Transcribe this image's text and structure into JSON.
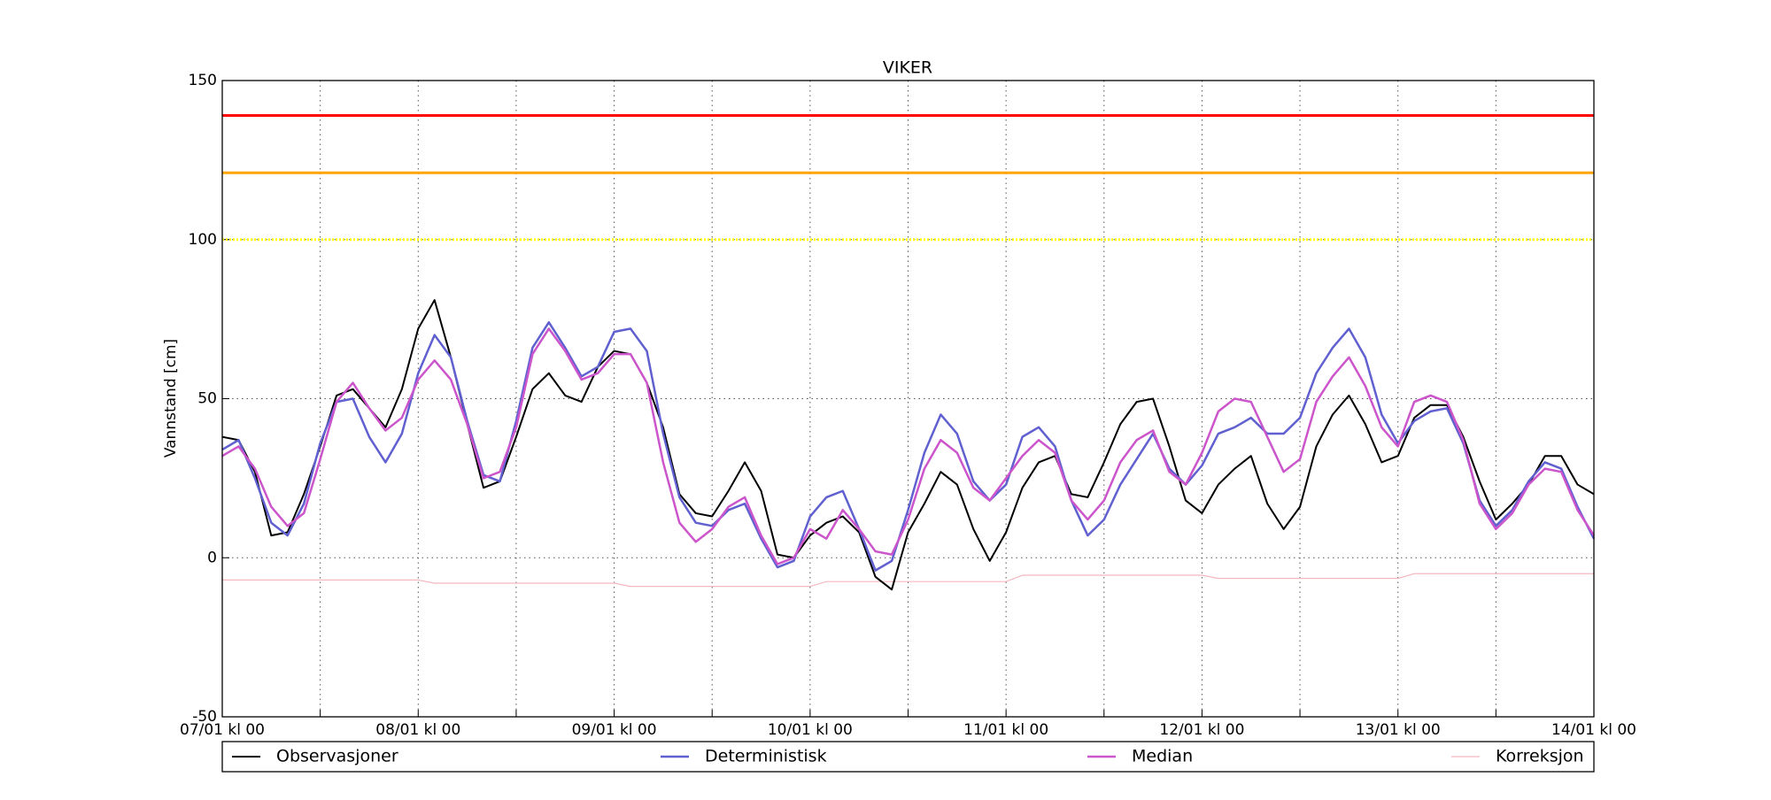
{
  "chart_data": {
    "type": "line",
    "title": "VIKER",
    "y_label": "Vannstand [cm]",
    "xlim": [
      0,
      168
    ],
    "ylim": [
      -50,
      150
    ],
    "xticks": [
      {
        "value": 0,
        "label": "07/01 kl 00"
      },
      {
        "value": 24,
        "label": "08/01 kl 00"
      },
      {
        "value": 48,
        "label": "09/01 kl 00"
      },
      {
        "value": 72,
        "label": "10/01 kl 00"
      },
      {
        "value": 96,
        "label": "11/01 kl 00"
      },
      {
        "value": 120,
        "label": "12/01 kl 00"
      },
      {
        "value": 144,
        "label": "13/01 kl 00"
      },
      {
        "value": 168,
        "label": "14/01 kl 00"
      }
    ],
    "xgrid_minor": [
      12,
      36,
      60,
      84,
      108,
      132,
      156
    ],
    "yticks": [
      -50,
      0,
      50,
      100,
      150
    ],
    "grid": true,
    "thresholds": [
      {
        "value": 139,
        "color": "#ff0000",
        "style": "solid"
      },
      {
        "value": 121,
        "color": "#ffa500",
        "style": "solid"
      },
      {
        "value": 100,
        "color": "#ffff00",
        "style": "dotted"
      }
    ],
    "legend": "bottom",
    "x": [
      0,
      2,
      4,
      6,
      8,
      10,
      12,
      14,
      16,
      18,
      20,
      22,
      24,
      26,
      28,
      30,
      32,
      34,
      36,
      38,
      40,
      42,
      44,
      46,
      48,
      50,
      52,
      54,
      56,
      58,
      60,
      62,
      64,
      66,
      68,
      70,
      72,
      74,
      76,
      78,
      80,
      82,
      84,
      86,
      88,
      90,
      92,
      94,
      96,
      98,
      100,
      102,
      104,
      106,
      108,
      110,
      112,
      114,
      116,
      118,
      120,
      122,
      124,
      126,
      128,
      130,
      132,
      134,
      136,
      138,
      140,
      142,
      144,
      146,
      148,
      150,
      152,
      154,
      156,
      158,
      160,
      162,
      164,
      166,
      168
    ],
    "series": [
      {
        "name": "Observasjoner",
        "color": "#000000",
        "width": 2,
        "values": [
          38,
          37,
          27,
          7,
          8,
          20,
          35,
          51,
          53,
          47,
          41,
          53,
          72,
          81,
          63,
          42,
          22,
          24,
          38,
          53,
          58,
          51,
          49,
          60,
          65,
          64,
          55,
          41,
          20,
          14,
          13,
          21,
          30,
          21,
          1,
          0,
          7,
          11,
          13,
          8,
          -6,
          -10,
          8,
          17,
          27,
          23,
          9,
          -1,
          8,
          22,
          30,
          32,
          20,
          19,
          30,
          42,
          49,
          50,
          35,
          18,
          14,
          23,
          28,
          32,
          17,
          9,
          16,
          35,
          45,
          51,
          42,
          30,
          32,
          44,
          48,
          48,
          38,
          24,
          12,
          17,
          23,
          32,
          32,
          23,
          20
        ]
      },
      {
        "name": "Deterministisk",
        "color": "#6060d0",
        "width": 2.5,
        "values": [
          34,
          37,
          25,
          11,
          7,
          17,
          36,
          49,
          50,
          38,
          30,
          39,
          58,
          70,
          63,
          43,
          26,
          24,
          43,
          66,
          74,
          66,
          57,
          60,
          71,
          72,
          65,
          39,
          19,
          11,
          10,
          15,
          17,
          6,
          -3,
          -1,
          13,
          19,
          21,
          9,
          -4,
          -1,
          15,
          33,
          45,
          39,
          24,
          18,
          23,
          38,
          41,
          35,
          18,
          7,
          12,
          23,
          31,
          39,
          28,
          23,
          29,
          39,
          41,
          44,
          39,
          39,
          44,
          58,
          66,
          72,
          63,
          45,
          36,
          43,
          46,
          47,
          36,
          18,
          10,
          15,
          24,
          30,
          28,
          16,
          6
        ]
      },
      {
        "name": "Median",
        "color": "#cc55cc",
        "width": 2.5,
        "values": [
          32,
          35,
          28,
          16,
          10,
          14,
          31,
          49,
          55,
          47,
          40,
          44,
          56,
          62,
          56,
          42,
          25,
          27,
          41,
          64,
          72,
          65,
          56,
          58,
          64,
          64,
          55,
          30,
          11,
          5,
          9,
          16,
          19,
          7,
          -2,
          0,
          9,
          6,
          15,
          9,
          2,
          1,
          12,
          28,
          37,
          33,
          22,
          18,
          25,
          32,
          37,
          33,
          18,
          12,
          18,
          30,
          37,
          40,
          27,
          23,
          33,
          46,
          50,
          49,
          38,
          27,
          31,
          49,
          57,
          63,
          54,
          41,
          35,
          49,
          51,
          49,
          37,
          17,
          9,
          14,
          23,
          28,
          27,
          15,
          7
        ]
      },
      {
        "name": "Korreksjon",
        "color": "#f4b8c0",
        "width": 1.2,
        "values": [
          -7,
          -7,
          -7,
          -7,
          -7,
          -7,
          -7,
          -7,
          -7,
          -7,
          -7,
          -7,
          -7,
          -8,
          -8,
          -8,
          -8,
          -8,
          -8,
          -8,
          -8,
          -8,
          -8,
          -8,
          -8,
          -9,
          -9,
          -9,
          -9,
          -9,
          -9,
          -9,
          -9,
          -9,
          -9,
          -9,
          -9,
          -7.5,
          -7.5,
          -7.5,
          -7.5,
          -7.5,
          -7.5,
          -7.5,
          -7.5,
          -7.5,
          -7.5,
          -7.5,
          -7.5,
          -5.5,
          -5.5,
          -5.5,
          -5.5,
          -5.5,
          -5.5,
          -5.5,
          -5.5,
          -5.5,
          -5.5,
          -5.5,
          -5.5,
          -6.5,
          -6.5,
          -6.5,
          -6.5,
          -6.5,
          -6.5,
          -6.5,
          -6.5,
          -6.5,
          -6.5,
          -6.5,
          -6.5,
          -5,
          -5,
          -5,
          -5,
          -5,
          -5,
          -5,
          -5,
          -5,
          -5,
          -5,
          -5
        ]
      }
    ]
  }
}
